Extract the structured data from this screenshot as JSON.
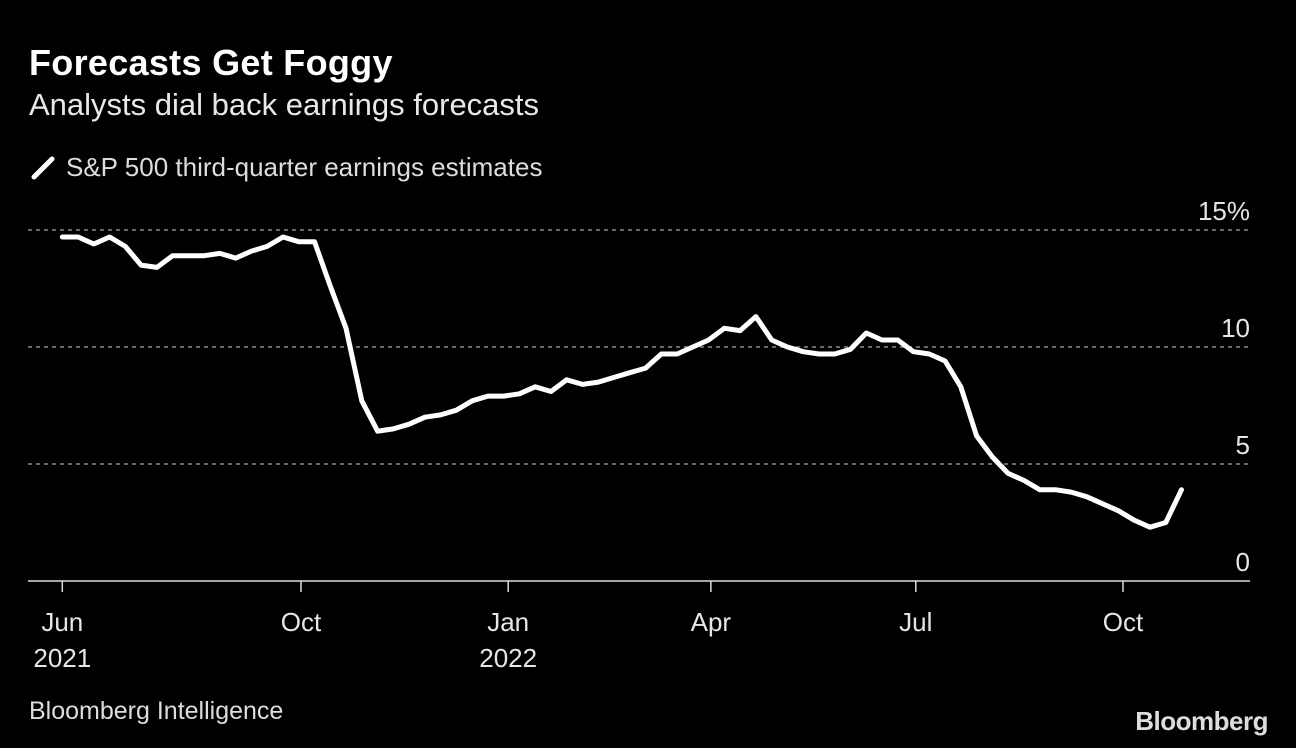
{
  "header": {
    "title": "Forecasts Get Foggy",
    "subtitle": "Analysts dial back earnings forecasts"
  },
  "footer": {
    "source": "Bloomberg Intelligence",
    "logo": "Bloomberg"
  },
  "chart_data": {
    "type": "line",
    "title": "Forecasts Get Foggy",
    "subtitle": "Analysts dial back earnings forecasts",
    "legend_position": "top-left",
    "grid": true,
    "colors": {
      "background": "#000000",
      "line": "#ffffff",
      "grid": "#8a8a8a"
    },
    "series": [
      {
        "name": "S&P 500 third-quarter earnings estimates",
        "x": [
          "2021-06-17",
          "2021-06-24",
          "2021-07-01",
          "2021-07-08",
          "2021-07-15",
          "2021-07-22",
          "2021-07-29",
          "2021-08-05",
          "2021-08-12",
          "2021-08-19",
          "2021-08-26",
          "2021-09-02",
          "2021-09-09",
          "2021-09-16",
          "2021-09-23",
          "2021-09-30",
          "2021-10-07",
          "2021-10-14",
          "2021-10-21",
          "2021-10-28",
          "2021-11-04",
          "2021-11-11",
          "2021-11-18",
          "2021-11-25",
          "2021-12-02",
          "2021-12-09",
          "2021-12-16",
          "2021-12-23",
          "2021-12-30",
          "2022-01-06",
          "2022-01-13",
          "2022-01-20",
          "2022-01-27",
          "2022-02-03",
          "2022-02-10",
          "2022-02-17",
          "2022-02-24",
          "2022-03-03",
          "2022-03-10",
          "2022-03-17",
          "2022-03-24",
          "2022-03-31",
          "2022-04-07",
          "2022-04-14",
          "2022-04-21",
          "2022-04-28",
          "2022-05-05",
          "2022-05-12",
          "2022-05-19",
          "2022-05-26",
          "2022-06-02",
          "2022-06-09",
          "2022-06-16",
          "2022-06-23",
          "2022-06-30",
          "2022-07-07",
          "2022-07-14",
          "2022-07-21",
          "2022-07-28",
          "2022-08-04",
          "2022-08-11",
          "2022-08-18",
          "2022-08-25",
          "2022-09-01",
          "2022-09-08",
          "2022-09-15",
          "2022-09-22",
          "2022-09-29",
          "2022-10-06",
          "2022-10-13",
          "2022-10-20",
          "2022-10-27"
        ],
        "y": [
          14.7,
          14.7,
          14.4,
          14.7,
          14.3,
          13.5,
          13.4,
          13.9,
          13.9,
          13.9,
          14.0,
          13.8,
          14.1,
          14.3,
          14.7,
          14.5,
          14.5,
          12.6,
          10.8,
          7.7,
          6.4,
          6.5,
          6.7,
          7.0,
          7.1,
          7.3,
          7.7,
          7.9,
          7.9,
          8.0,
          8.3,
          8.1,
          8.6,
          8.4,
          8.5,
          8.7,
          8.9,
          9.1,
          9.7,
          9.7,
          10.0,
          10.3,
          10.8,
          10.7,
          11.3,
          10.3,
          10.0,
          9.8,
          9.7,
          9.7,
          9.9,
          10.6,
          10.3,
          10.3,
          9.8,
          9.7,
          9.4,
          8.3,
          6.2,
          5.3,
          4.6,
          4.3,
          3.9,
          3.9,
          3.8,
          3.6,
          3.3,
          3.0,
          2.6,
          2.3,
          2.5,
          3.9
        ]
      }
    ],
    "y_axis": {
      "min": 0,
      "max": 15,
      "ticks": [
        0,
        5,
        10,
        15
      ],
      "tick_labels": [
        "0",
        "5",
        "10",
        "15%"
      ],
      "position": "right"
    },
    "x_axis": {
      "ticks": [
        {
          "date": "2021-06-01",
          "label": "Jun",
          "year": "2021"
        },
        {
          "date": "2021-10-01",
          "label": "Oct",
          "year": ""
        },
        {
          "date": "2022-01-01",
          "label": "Jan",
          "year": "2022"
        },
        {
          "date": "2022-04-01",
          "label": "Apr",
          "year": ""
        },
        {
          "date": "2022-07-01",
          "label": "Jul",
          "year": ""
        },
        {
          "date": "2022-10-01",
          "label": "Oct",
          "year": ""
        }
      ]
    }
  }
}
